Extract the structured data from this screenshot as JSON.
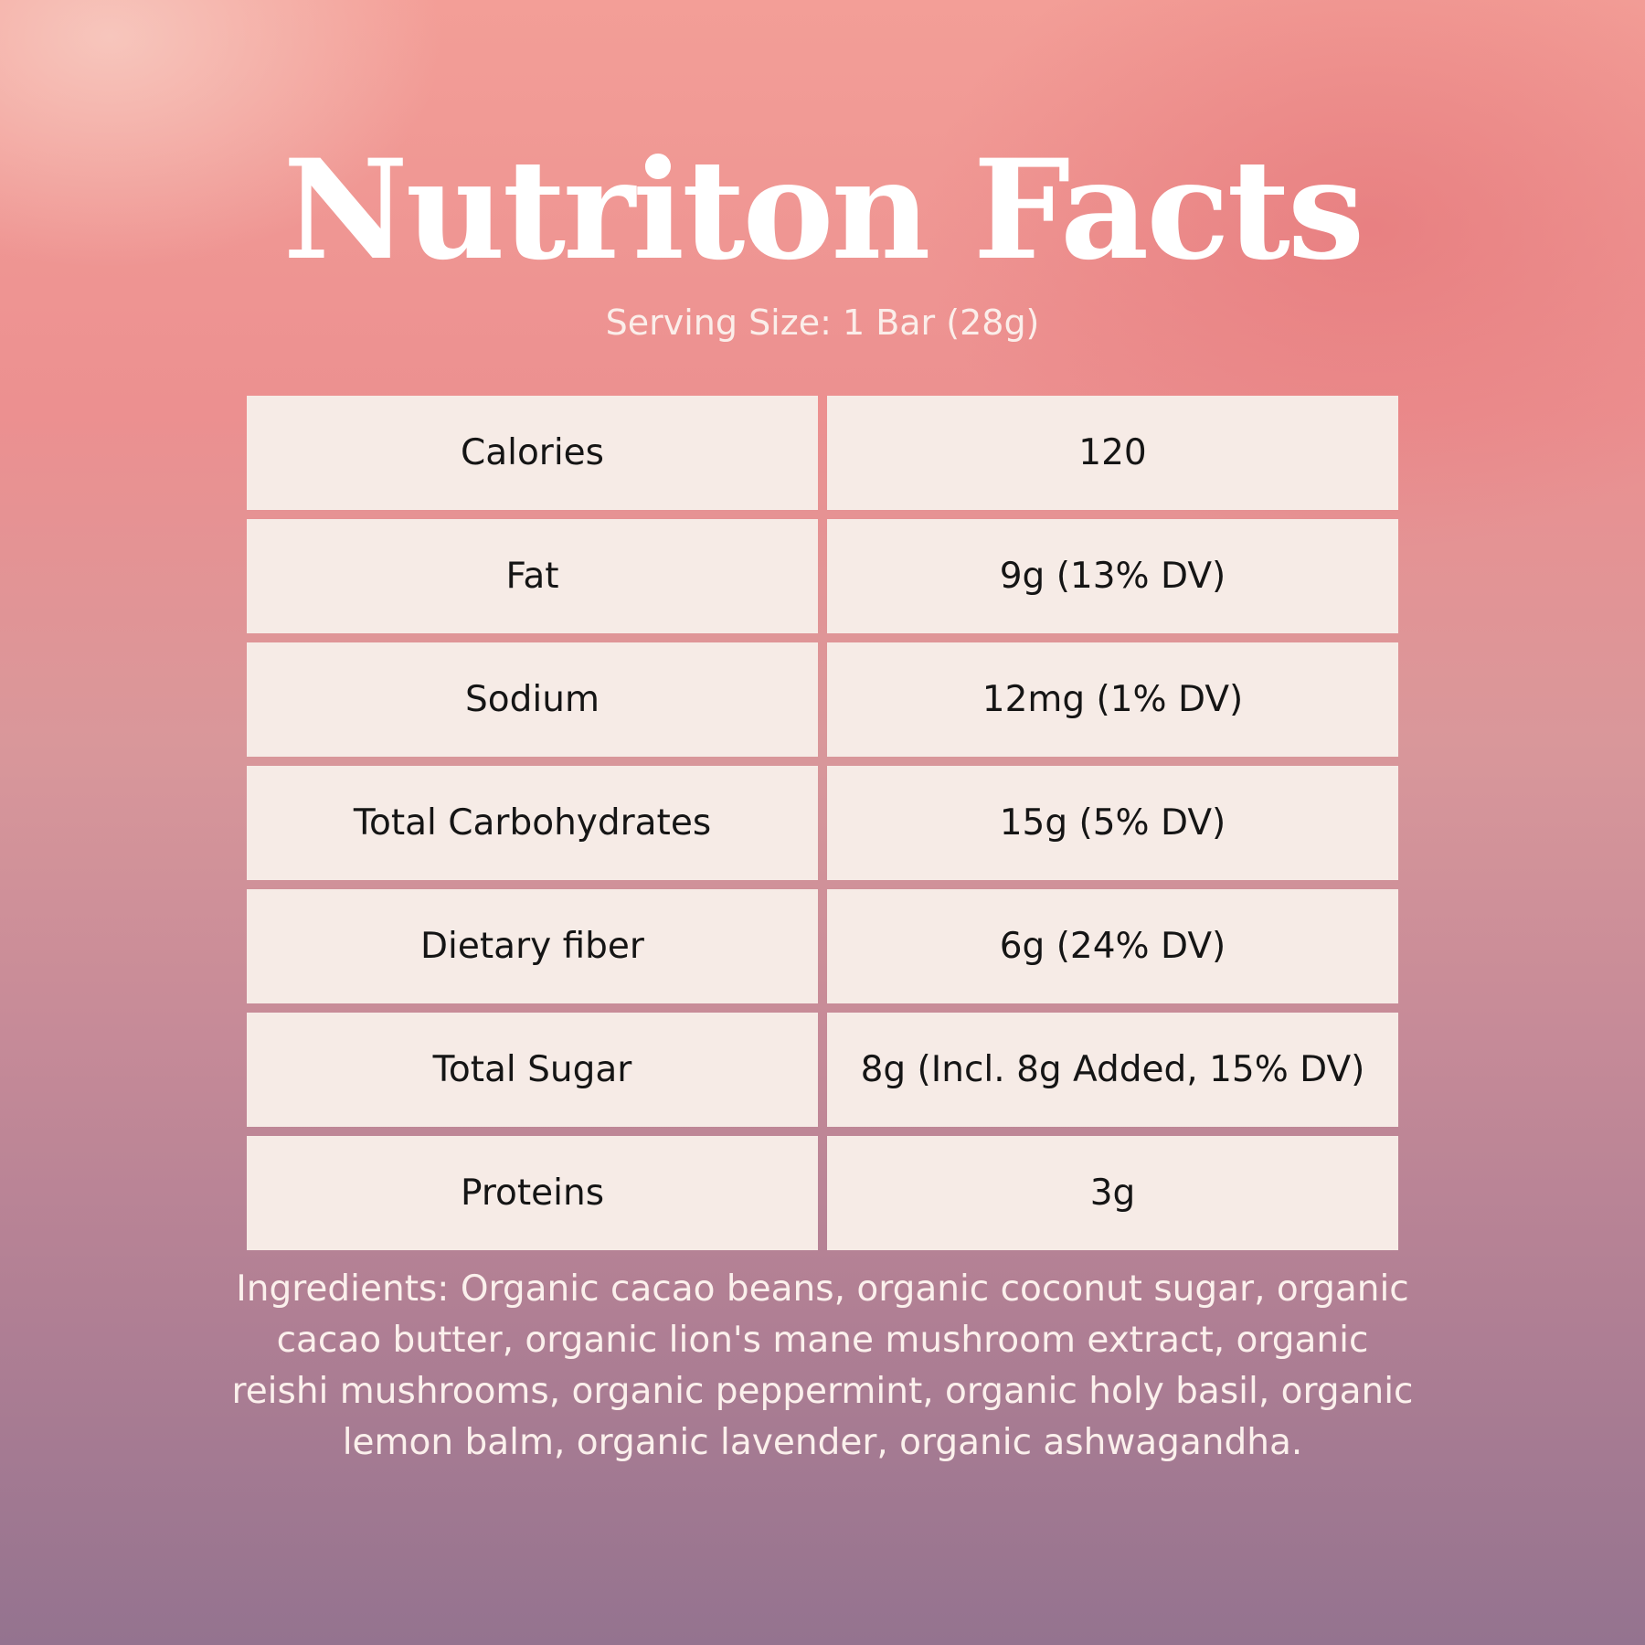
{
  "title": "Nutriton Facts",
  "serving_size": "Serving Size: 1 Bar (28g)",
  "table": {
    "rows": [
      {
        "label": "Calories",
        "value": "120"
      },
      {
        "label": "Fat",
        "value": "9g (13% DV)"
      },
      {
        "label": "Sodium",
        "value": "12mg (1% DV)"
      },
      {
        "label": "Total Carbohydrates",
        "value": "15g (5% DV)"
      },
      {
        "label": "Dietary fiber",
        "value": "6g (24% DV)"
      },
      {
        "label": "Total Sugar",
        "value": "8g (Incl. 8g Added, 15% DV)"
      },
      {
        "label": "Proteins",
        "value": "3g"
      }
    ]
  },
  "ingredients": "Ingredients: Organic cacao beans, organic coconut sugar, organic cacao butter, organic lion's mane mushroom extract, organic reishi mushrooms, organic peppermint, organic holy basil, organic lemon balm, organic lavender, organic ashwagandha.",
  "colors": {
    "background_top": "#f39e97",
    "background_bottom": "#94738f",
    "cell_background": "#f6ebe6",
    "title_text": "#ffffff",
    "cell_text": "#151515"
  }
}
